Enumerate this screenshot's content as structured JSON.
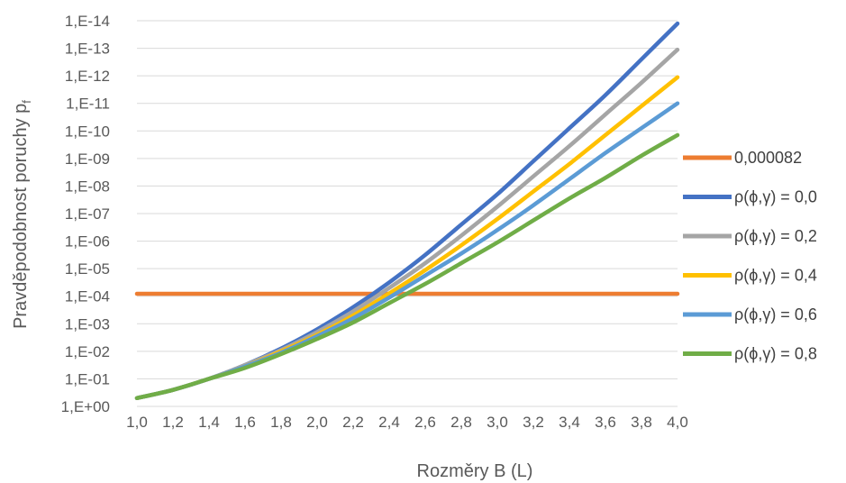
{
  "chart_data": {
    "type": "line",
    "title": "",
    "xlabel": "Rozměry B (L)",
    "ylabel": "Pravděpodobnost poruchy p",
    "ylabel_subscript": "f",
    "x_ticks": [
      "1,0",
      "1,2",
      "1,4",
      "1,6",
      "1,8",
      "2,0",
      "2,2",
      "2,4",
      "2,6",
      "2,8",
      "3,0",
      "3,2",
      "3,4",
      "3,6",
      "3,8",
      "4,0"
    ],
    "y_ticks": [
      "1,E+00",
      "1,E-01",
      "1,E-02",
      "1,E-03",
      "1,E-04",
      "1,E-05",
      "1,E-06",
      "1,E-07",
      "1,E-08",
      "1,E-09",
      "1,E-10",
      "1,E-11",
      "1,E-12",
      "1,E-13",
      "1,E-14"
    ],
    "y_scale": "log (reversed)",
    "ylim_exponent": [
      0,
      -14
    ],
    "xlim": [
      1.0,
      4.0
    ],
    "grid": true,
    "legend_position": "right",
    "x": [
      1.0,
      1.2,
      1.4,
      1.6,
      1.8,
      2.0,
      2.2,
      2.4,
      2.6,
      2.8,
      3.0,
      3.2,
      3.4,
      3.6,
      3.8,
      4.0
    ],
    "series": [
      {
        "name": "0,000082",
        "color": "#ED7D31",
        "log10_values": [
          -4.09,
          -4.09,
          -4.09,
          -4.09,
          -4.09,
          -4.09,
          -4.09,
          -4.09,
          -4.09,
          -4.09,
          -4.09,
          -4.09,
          -4.09,
          -4.09,
          -4.09,
          -4.09
        ]
      },
      {
        "name": "ρ(ϕ,γ) = 0,0",
        "color": "#4472C4",
        "log10_values": [
          -0.3,
          -0.6,
          -1.0,
          -1.5,
          -2.1,
          -2.8,
          -3.6,
          -4.5,
          -5.5,
          -6.6,
          -7.7,
          -8.9,
          -10.1,
          -11.3,
          -12.6,
          -13.9
        ]
      },
      {
        "name": "ρ(ϕ,γ) = 0,2",
        "color": "#A5A5A5",
        "log10_values": [
          -0.3,
          -0.6,
          -1.0,
          -1.5,
          -2.05,
          -2.7,
          -3.45,
          -4.3,
          -5.2,
          -6.2,
          -7.25,
          -8.35,
          -9.45,
          -10.6,
          -11.75,
          -12.95
        ]
      },
      {
        "name": "ρ(ϕ,γ) = 0,4",
        "color": "#FFC000",
        "log10_values": [
          -0.3,
          -0.6,
          -1.0,
          -1.45,
          -2.0,
          -2.6,
          -3.3,
          -4.1,
          -4.95,
          -5.85,
          -6.8,
          -7.8,
          -8.8,
          -9.85,
          -10.9,
          -11.95
        ]
      },
      {
        "name": "ρ(ϕ,γ) = 0,6",
        "color": "#5B9BD5",
        "log10_values": [
          -0.3,
          -0.6,
          -1.0,
          -1.45,
          -1.95,
          -2.55,
          -3.2,
          -3.95,
          -4.75,
          -5.55,
          -6.4,
          -7.3,
          -8.25,
          -9.2,
          -10.1,
          -11.0
        ]
      },
      {
        "name": "ρ(ϕ,γ) = 0,8",
        "color": "#70AD47",
        "log10_values": [
          -0.3,
          -0.6,
          -1.0,
          -1.4,
          -1.9,
          -2.45,
          -3.05,
          -3.75,
          -4.45,
          -5.2,
          -5.95,
          -6.75,
          -7.55,
          -8.3,
          -9.1,
          -9.85
        ]
      }
    ]
  }
}
